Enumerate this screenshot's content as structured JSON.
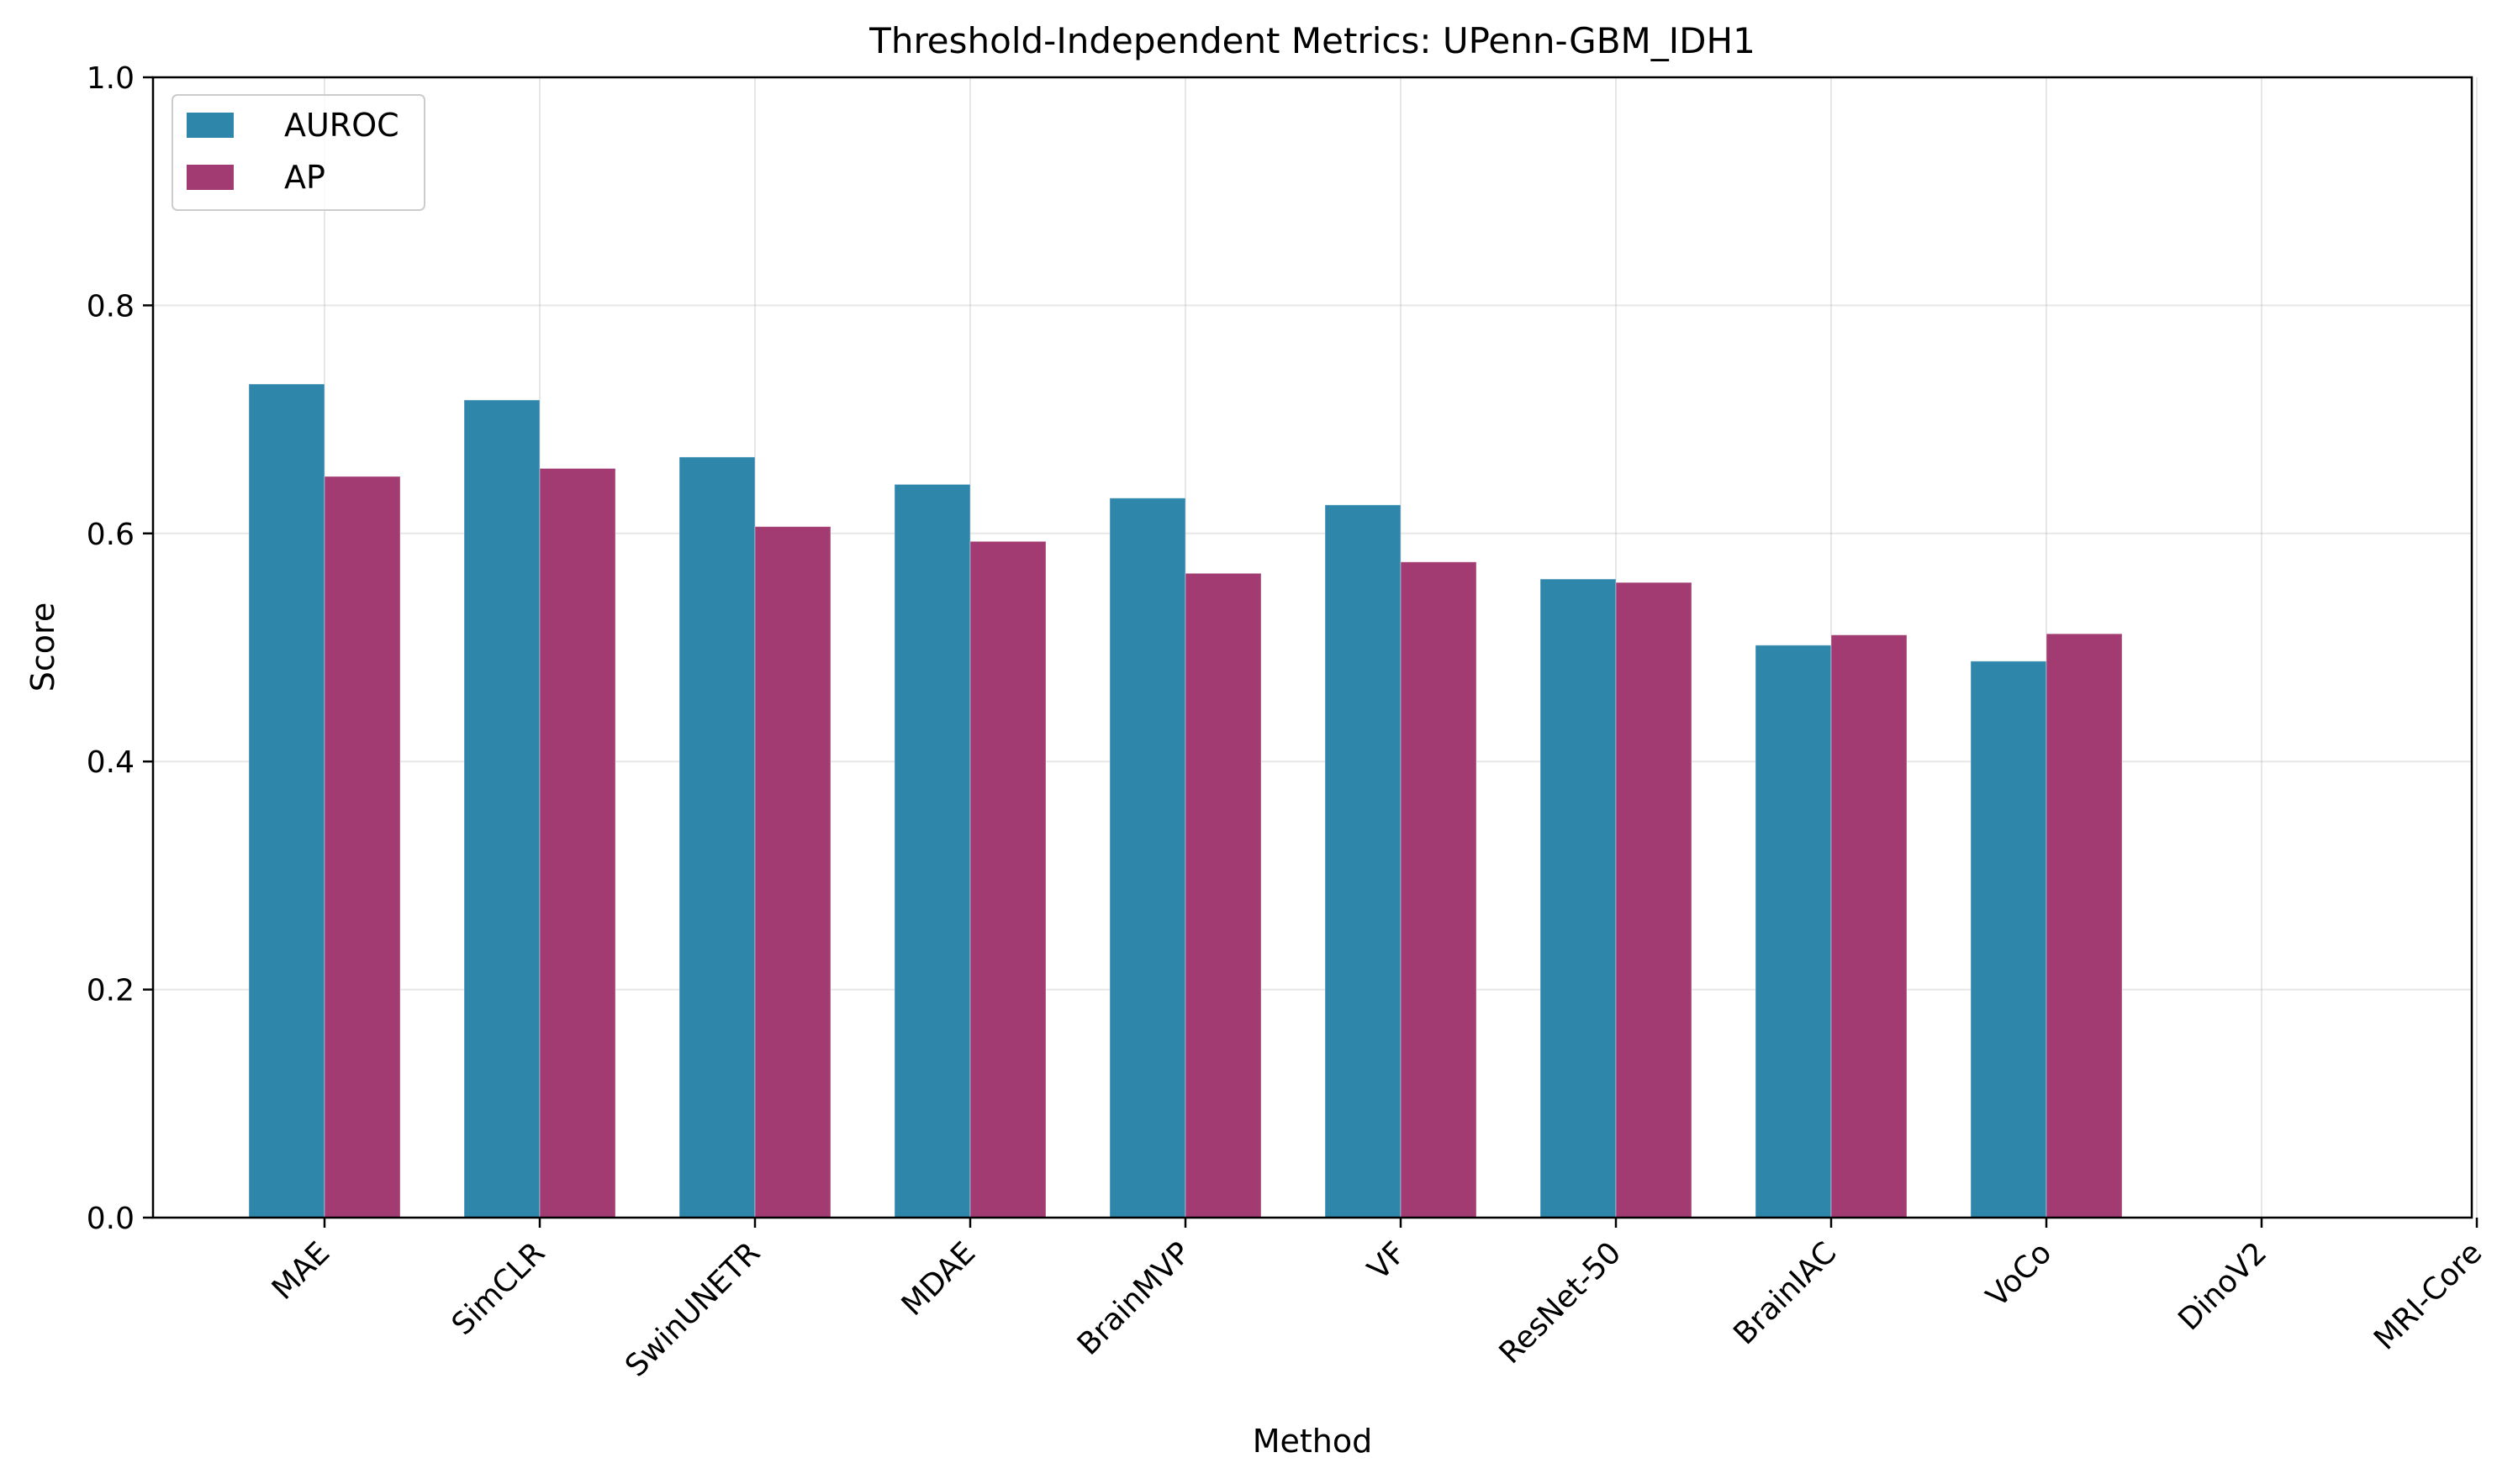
{
  "chart_data": {
    "type": "bar",
    "title": "Threshold-Independent Metrics: UPenn-GBM_IDH1",
    "xlabel": "Method",
    "ylabel": "Score",
    "ylim": [
      0,
      1.0
    ],
    "yticks": [
      "0.0",
      "0.2",
      "0.4",
      "0.6",
      "0.8",
      "1.0"
    ],
    "grid": true,
    "legend_position": "top-left",
    "categories": [
      "MAE",
      "SimCLR",
      "SwinUNETR",
      "MDAE",
      "BrainMVP",
      "VF",
      "ResNet-50",
      "BrainIAC",
      "VoCo",
      "DinoV2",
      "MRI-Core"
    ],
    "series": [
      {
        "name": "AUROC",
        "color": "#2e86ab",
        "values": [
          0.731,
          0.717,
          0.667,
          0.643,
          0.631,
          0.625,
          0.56,
          0.502,
          0.488,
          0.0,
          0.0
        ]
      },
      {
        "name": "AP",
        "color": "#a23b72",
        "values": [
          0.65,
          0.657,
          0.606,
          0.593,
          0.565,
          0.575,
          0.557,
          0.511,
          0.512,
          0.0,
          0.0
        ]
      }
    ]
  }
}
